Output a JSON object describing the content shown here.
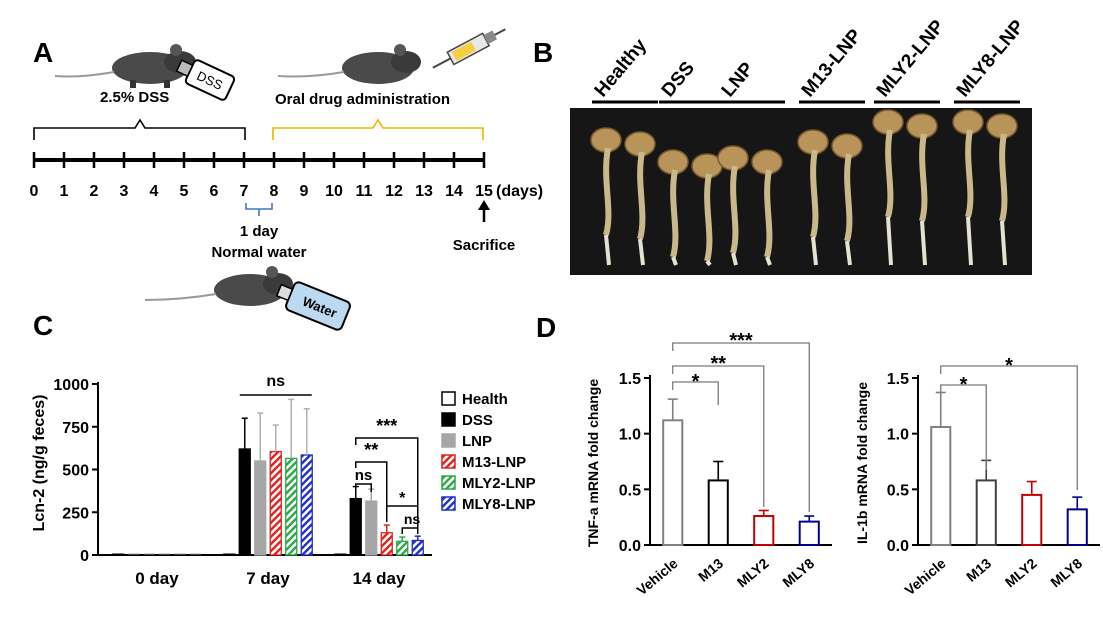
{
  "panels": {
    "A": "A",
    "B": "B",
    "C": "C",
    "D": "D"
  },
  "colors": {
    "dss": "#000000",
    "lnp": "#a6a6a6",
    "m13": "#e0201c",
    "mly2": "#28a745",
    "mly8": "#1f2ec8",
    "timeline_dss": "#000000",
    "timeline_drug": "#f0b400",
    "normal_water_bracket": "#3a78c8",
    "tnf_mly2": "#c00000",
    "tnf_mly8": "#00008b",
    "tnf_vehicle": "#808080",
    "tnf_m13": "#000000",
    "il_m13": "#404040"
  },
  "panel_a": {
    "dss_label": "2.5% DSS",
    "dss_bottle_label": "DSS",
    "drug_label": "Oral drug administration",
    "days": [
      "0",
      "1",
      "2",
      "3",
      "4",
      "5",
      "6",
      "7",
      "8",
      "9",
      "10",
      "11",
      "12",
      "13",
      "14",
      "15"
    ],
    "days_unit": "(days)",
    "normal_water_line1": "1 day",
    "normal_water_line2": "Normal water",
    "sacrifice_label": "Sacrifice",
    "water_bottle_label": "Water",
    "icons": [
      "mouse-icon",
      "dss-bottle-icon",
      "syringe-icon",
      "water-bottle-icon",
      "arrow-up-icon"
    ]
  },
  "panel_b": {
    "groups": [
      "Healthy",
      "DSS",
      "LNP",
      "M13-LNP",
      "MLY2-LNP",
      "MLY8-LNP"
    ],
    "image": "colon-tissue-photo"
  },
  "chart_data": [
    {
      "type": "bar",
      "ylabel": "Lcn-2 (ng/g feces)",
      "ylim": [
        0,
        1000
      ],
      "yticks": [
        0,
        250,
        500,
        750,
        1000
      ],
      "categories": [
        "0 day",
        "7 day",
        "14 day"
      ],
      "series": [
        {
          "name": "Health",
          "values": [
            5,
            5,
            5
          ],
          "errors": [
            0,
            0,
            0
          ]
        },
        {
          "name": "DSS",
          "values": [
            5,
            620,
            330
          ],
          "errors": [
            0,
            180,
            70
          ]
        },
        {
          "name": "LNP",
          "values": [
            5,
            550,
            315
          ],
          "errors": [
            0,
            280,
            70
          ]
        },
        {
          "name": "M13-LNP",
          "values": [
            5,
            605,
            130
          ],
          "errors": [
            0,
            155,
            45
          ]
        },
        {
          "name": "MLY2-LNP",
          "values": [
            5,
            565,
            80
          ],
          "errors": [
            0,
            345,
            25
          ]
        },
        {
          "name": "MLY8-LNP",
          "values": [
            5,
            585,
            85
          ],
          "errors": [
            0,
            270,
            25
          ]
        }
      ],
      "annotations": [
        "ns",
        "ns",
        "**",
        "***",
        "*",
        "ns"
      ],
      "legend_position": "right"
    },
    {
      "type": "bar",
      "ylabel": "TNF-a mRNA fold change",
      "ylim": [
        0,
        1.5
      ],
      "yticks": [
        "0.0",
        "0.5",
        "1.0",
        "1.5"
      ],
      "categories": [
        "Vehicle",
        "M13",
        "MLY2",
        "MLY8"
      ],
      "values": [
        1.12,
        0.58,
        0.26,
        0.21
      ],
      "errors": [
        0.19,
        0.17,
        0.05,
        0.05
      ],
      "annotations": [
        "*",
        "**",
        "***"
      ]
    },
    {
      "type": "bar",
      "ylabel": "IL-1b mRNA fold change",
      "ylim": [
        0,
        1.5
      ],
      "yticks": [
        "0.0",
        "0.5",
        "1.0",
        "1.5"
      ],
      "categories": [
        "Vehicle",
        "M13",
        "MLY2",
        "MLY8"
      ],
      "values": [
        1.06,
        0.58,
        0.45,
        0.32
      ],
      "errors": [
        0.31,
        0.18,
        0.12,
        0.11
      ],
      "annotations": [
        "*",
        "*"
      ]
    }
  ]
}
